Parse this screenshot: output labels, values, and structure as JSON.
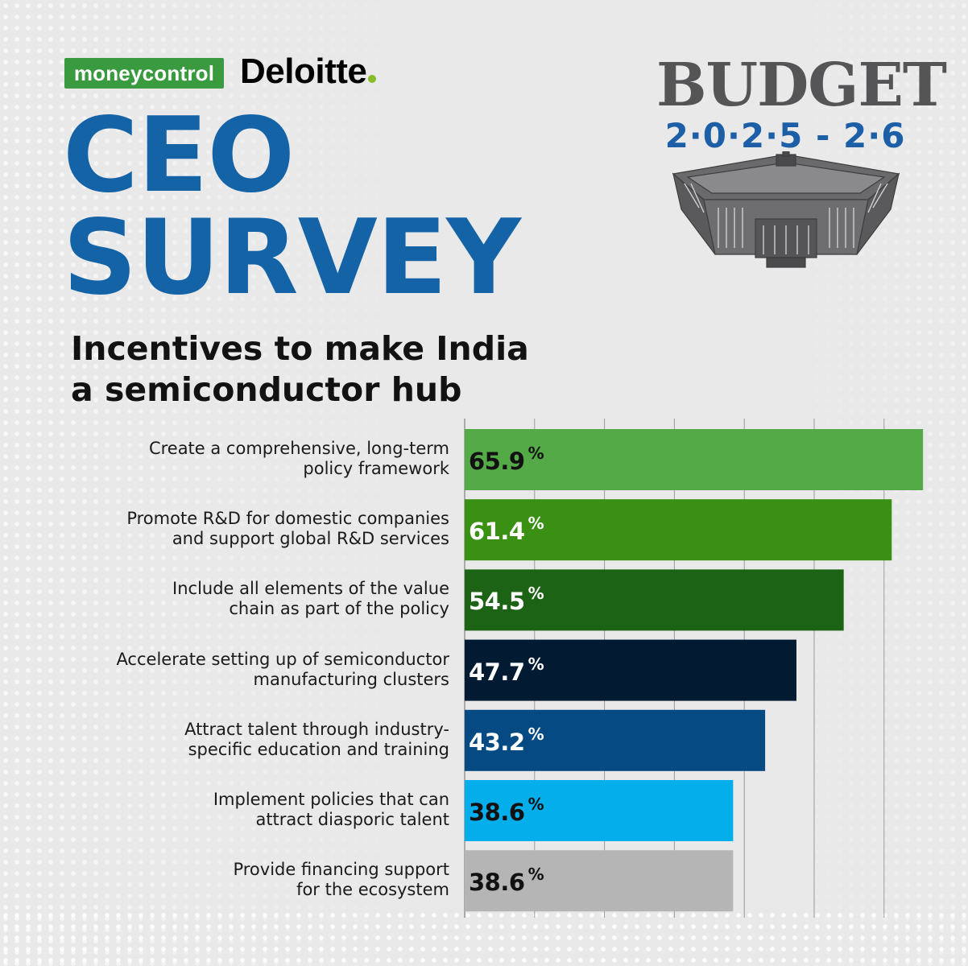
{
  "colors": {
    "title": "#1463a7",
    "budget_gray": "#555557",
    "budget_blue": "#1c5fa6",
    "moneycontrol_green": "#3a9a3f",
    "deloitte_dot": "#86bc25",
    "gridline": "#9a9a9a"
  },
  "logos": {
    "moneycontrol": {
      "prefix": "money",
      "suffix": "control"
    },
    "deloitte": "Deloitte"
  },
  "badge": {
    "word": "BUDGET",
    "year": "2·0·2·5 - 2·6",
    "icon": "parliament-building-icon"
  },
  "title": {
    "line1": "CEO",
    "line2": "SURVEY"
  },
  "subtitle": {
    "line1": "Incentives to make India",
    "line2": "a semiconductor hub"
  },
  "chart_data": {
    "type": "bar",
    "orientation": "horizontal",
    "categories": [
      [
        "Create a comprehensive, long-term",
        "policy framework"
      ],
      [
        "Promote R&D for domestic companies",
        "and support global R&D services"
      ],
      [
        "Include all elements of the value",
        "chain as part of the policy"
      ],
      [
        "Accelerate setting up of semiconductor",
        "manufacturing clusters"
      ],
      [
        "Attract talent through industry-",
        "specific education and training"
      ],
      [
        "Implement policies that can",
        "attract diasporic talent"
      ],
      [
        "Provide financing support",
        "for the ecosystem"
      ]
    ],
    "values": [
      65.9,
      61.4,
      54.5,
      47.7,
      43.2,
      38.6,
      38.6
    ],
    "value_labels": [
      "65.9",
      "61.4",
      "54.5",
      "47.7",
      "43.2",
      "38.6",
      "38.6"
    ],
    "unit": "%",
    "bar_colors": [
      "#55aa48",
      "#3a9013",
      "#1d6316",
      "#021b33",
      "#054a83",
      "#03aeea",
      "#b5b5b6"
    ],
    "label_colors": [
      "#111111",
      "#ffffff",
      "#ffffff",
      "#ffffff",
      "#ffffff",
      "#111111",
      "#111111"
    ],
    "xlim": [
      0,
      66
    ],
    "grid": true
  }
}
